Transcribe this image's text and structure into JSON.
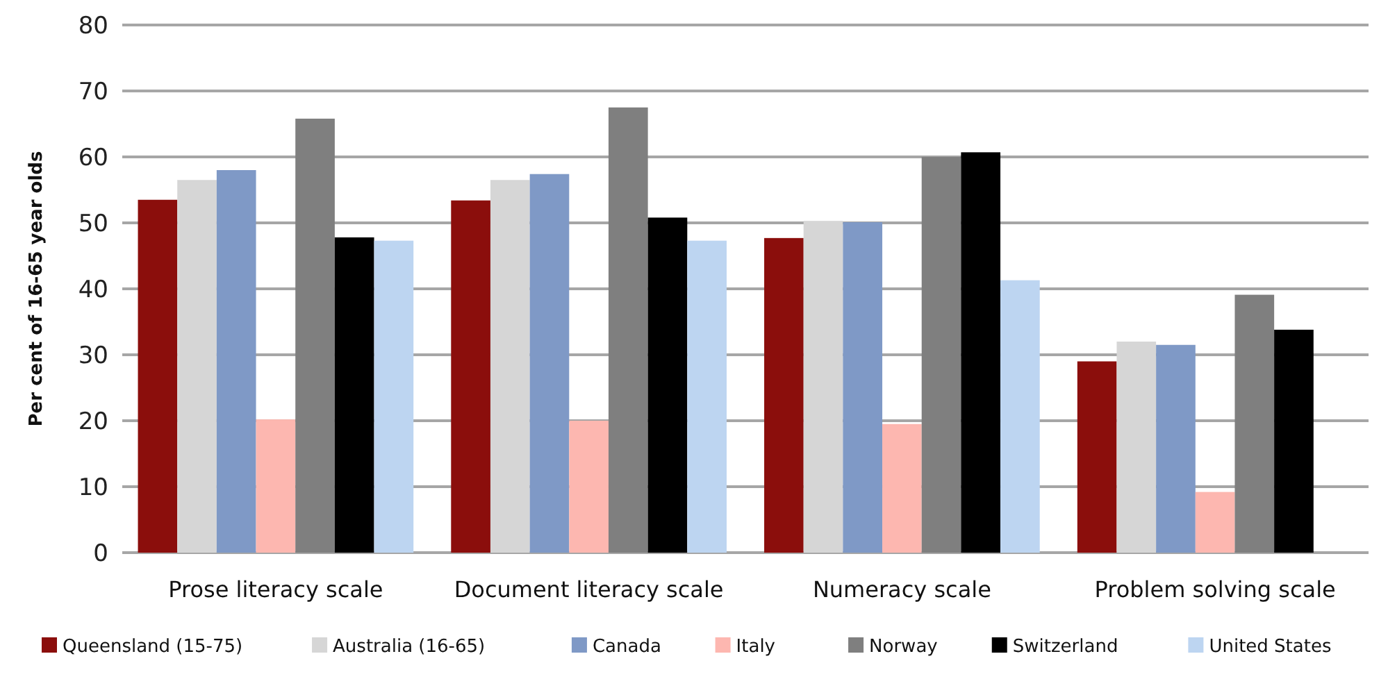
{
  "chart_data": {
    "type": "bar",
    "ylabel": "Per cent of 16-65 year olds",
    "categories": [
      "Prose literacy scale",
      "Document literacy scale",
      "Numeracy scale",
      "Problem solving scale"
    ],
    "series": [
      {
        "name": "Queensland (15-75)",
        "color": "#8b0e0c",
        "values": [
          53.5,
          53.4,
          47.7,
          29
        ]
      },
      {
        "name": "Australia (16-65)",
        "color": "#d6d6d6",
        "values": [
          56.5,
          56.5,
          50.3,
          32
        ]
      },
      {
        "name": "Canada",
        "color": "#7f99c6",
        "values": [
          58,
          57.4,
          50.1,
          31.5
        ]
      },
      {
        "name": "Italy",
        "color": "#fdb7b0",
        "values": [
          20.2,
          20,
          19.5,
          9.2
        ]
      },
      {
        "name": "Norway",
        "color": "#7f7f7f",
        "values": [
          65.8,
          67.5,
          60,
          39.1
        ]
      },
      {
        "name": "Switzerland",
        "color": "#000000",
        "values": [
          47.8,
          50.8,
          60.7,
          33.8
        ]
      },
      {
        "name": "United States",
        "color": "#bdd5f1",
        "values": [
          47.3,
          47.3,
          41.3,
          null
        ]
      }
    ],
    "ylim": [
      0,
      80
    ],
    "yticks": [
      0,
      10,
      20,
      30,
      40,
      50,
      60,
      70,
      80
    ],
    "grid": "y",
    "legend": "bottom"
  }
}
